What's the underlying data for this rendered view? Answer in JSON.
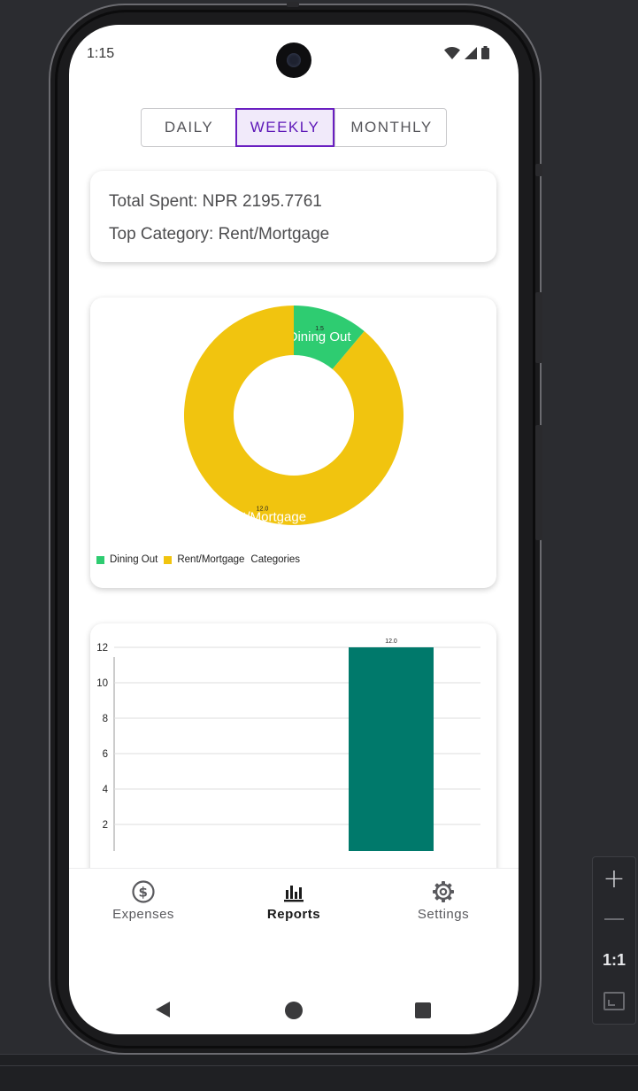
{
  "status_bar": {
    "time": "1:15"
  },
  "tabs": [
    {
      "label": "DAILY",
      "selected": false
    },
    {
      "label": "WEEKLY",
      "selected": true
    },
    {
      "label": "MONTHLY",
      "selected": false
    }
  ],
  "summary": {
    "total_spent": "Total Spent: NPR 2195.7761",
    "top_category": "Top Category: Rent/Mortgage"
  },
  "chart_data": [
    {
      "type": "pie",
      "style": "donut",
      "slices": [
        {
          "label": "Dining Out",
          "value": 1.5,
          "value_label": "1.5",
          "color": "#2ecc71"
        },
        {
          "label": "Rent/Mortgage",
          "value": 12.0,
          "value_label": "12.0",
          "color": "#f1c40f"
        }
      ],
      "legend": {
        "entries": [
          "Dining Out",
          "Rent/Mortgage"
        ],
        "description": "Categories",
        "placement": "bottom-left"
      }
    },
    {
      "type": "bar",
      "bars": [
        {
          "value": 12.0,
          "value_label": "12.0",
          "color": "#00796b"
        }
      ],
      "y_ticks": [
        "12",
        "10",
        "8",
        "6",
        "4",
        "2"
      ],
      "grid": true
    }
  ],
  "bottom_nav": [
    {
      "label": "Expenses",
      "icon": "dollar-circle-icon",
      "active": false
    },
    {
      "label": "Reports",
      "icon": "bar-chart-icon",
      "active": true
    },
    {
      "label": "Settings",
      "icon": "gear-icon",
      "active": false
    }
  ],
  "emulator_toolbar": {
    "zoom_in": "+",
    "ratio": "1:1"
  }
}
